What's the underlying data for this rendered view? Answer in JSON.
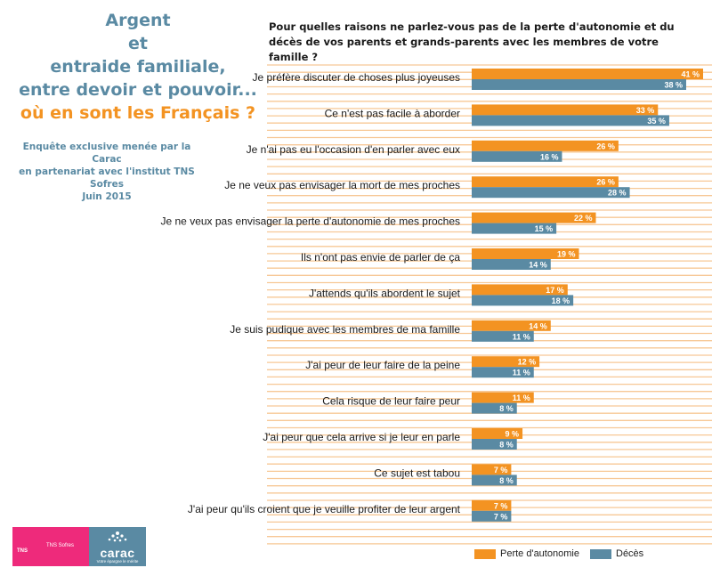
{
  "branding": {
    "title_lines": [
      "Argent",
      "et",
      "entraide familiale,",
      "entre devoir et pouvoir...",
      "où en sont les Français ?"
    ],
    "survey_lines": [
      "Enquête exclusive menée par la Carac",
      "en partenariat avec l'institut TNS Sofres",
      "Juin 2015"
    ],
    "tns_label": "TNS",
    "tns_name": "TNS Sofres",
    "carac_label": "carac",
    "carac_tagline": "Votre épargne le mérite"
  },
  "colors": {
    "orange": "#f39322",
    "blue": "#5a8aa3",
    "stripe": "#f7c896",
    "title_blue": "#5a8aa3"
  },
  "chart_data": {
    "type": "bar",
    "orientation": "horizontal",
    "title": "Pour quelles raisons ne parlez-vous pas de la perte d'autonomie et du décès de vos parents et grands-parents avec les membres de votre famille ?",
    "categories": [
      "Je préfère discuter de choses plus joyeuses",
      "Ce n'est pas facile à aborder",
      "Je n'ai pas eu l'occasion d'en parler avec eux",
      "Je ne veux pas envisager la mort de mes proches",
      "Je ne veux pas envisager la perte d'autonomie de mes proches",
      "Ils n'ont pas envie de parler de ça",
      "J'attends qu'ils abordent le sujet",
      "Je suis pudique avec les membres de ma famille",
      "J'ai peur de leur faire de la peine",
      "Cela risque de leur faire peur",
      "J'ai peur que cela arrive si je leur en parle",
      "Ce sujet est tabou",
      "J'ai peur qu'ils croient que je veuille profiter de leur argent"
    ],
    "series": [
      {
        "name": "Perte d'autonomie",
        "values": [
          41,
          33,
          26,
          26,
          22,
          19,
          17,
          14,
          12,
          11,
          9,
          7,
          7
        ],
        "labels": [
          "41 %",
          "33 %",
          "26 %",
          "26 %",
          "22 %",
          "19 %",
          "17 %",
          "14 %",
          "12 %",
          "11 %",
          "9 %",
          "7 %",
          "7 %"
        ]
      },
      {
        "name": "Décès",
        "values": [
          38,
          35,
          16,
          28,
          15,
          14,
          18,
          11,
          11,
          8,
          8,
          8,
          7
        ],
        "labels": [
          "38 %",
          "35 %",
          "16 %",
          "28 %",
          "15 %",
          "14 %",
          "18 %",
          "11 %",
          "11 %",
          "8 %",
          "8 %",
          "8 %",
          "7 %"
        ]
      }
    ],
    "xlim": [
      0,
      41
    ],
    "legend_position": "bottom",
    "grid": false
  }
}
